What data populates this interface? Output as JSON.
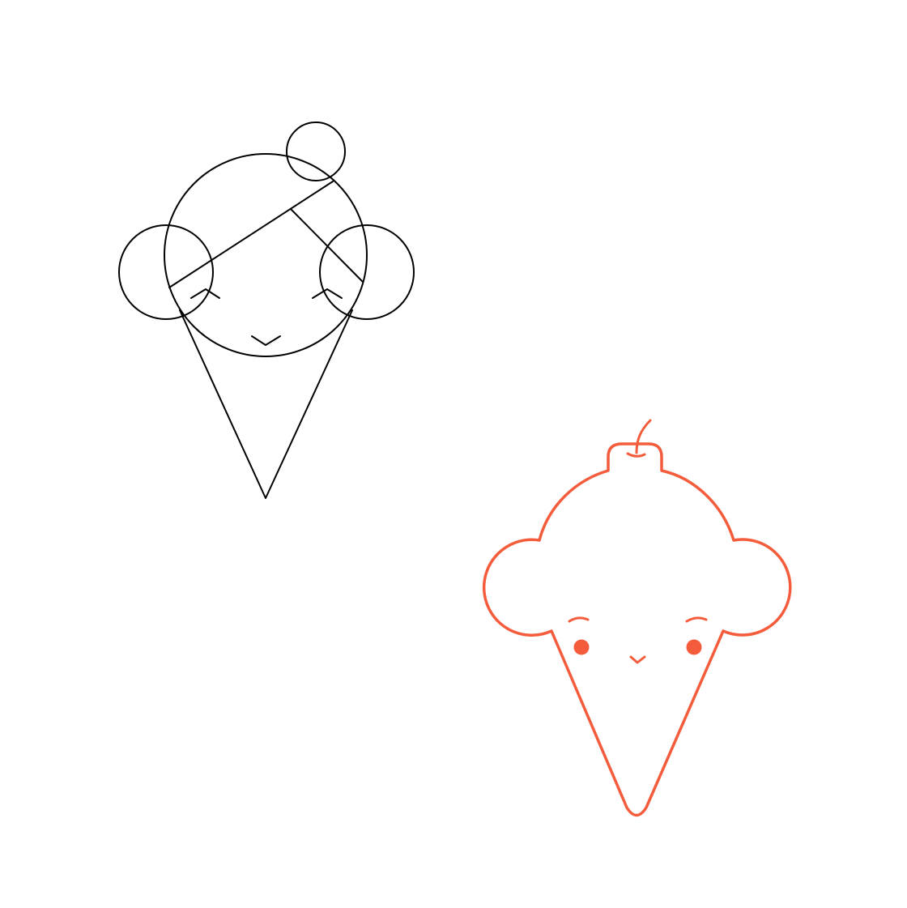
{
  "illustration": {
    "sketch": {
      "icon": "ice-cream-construction-sketch-icon",
      "color": "#000000"
    },
    "final": {
      "icon": "ice-cream-cone-character-icon",
      "color": "#F45C3C"
    }
  }
}
